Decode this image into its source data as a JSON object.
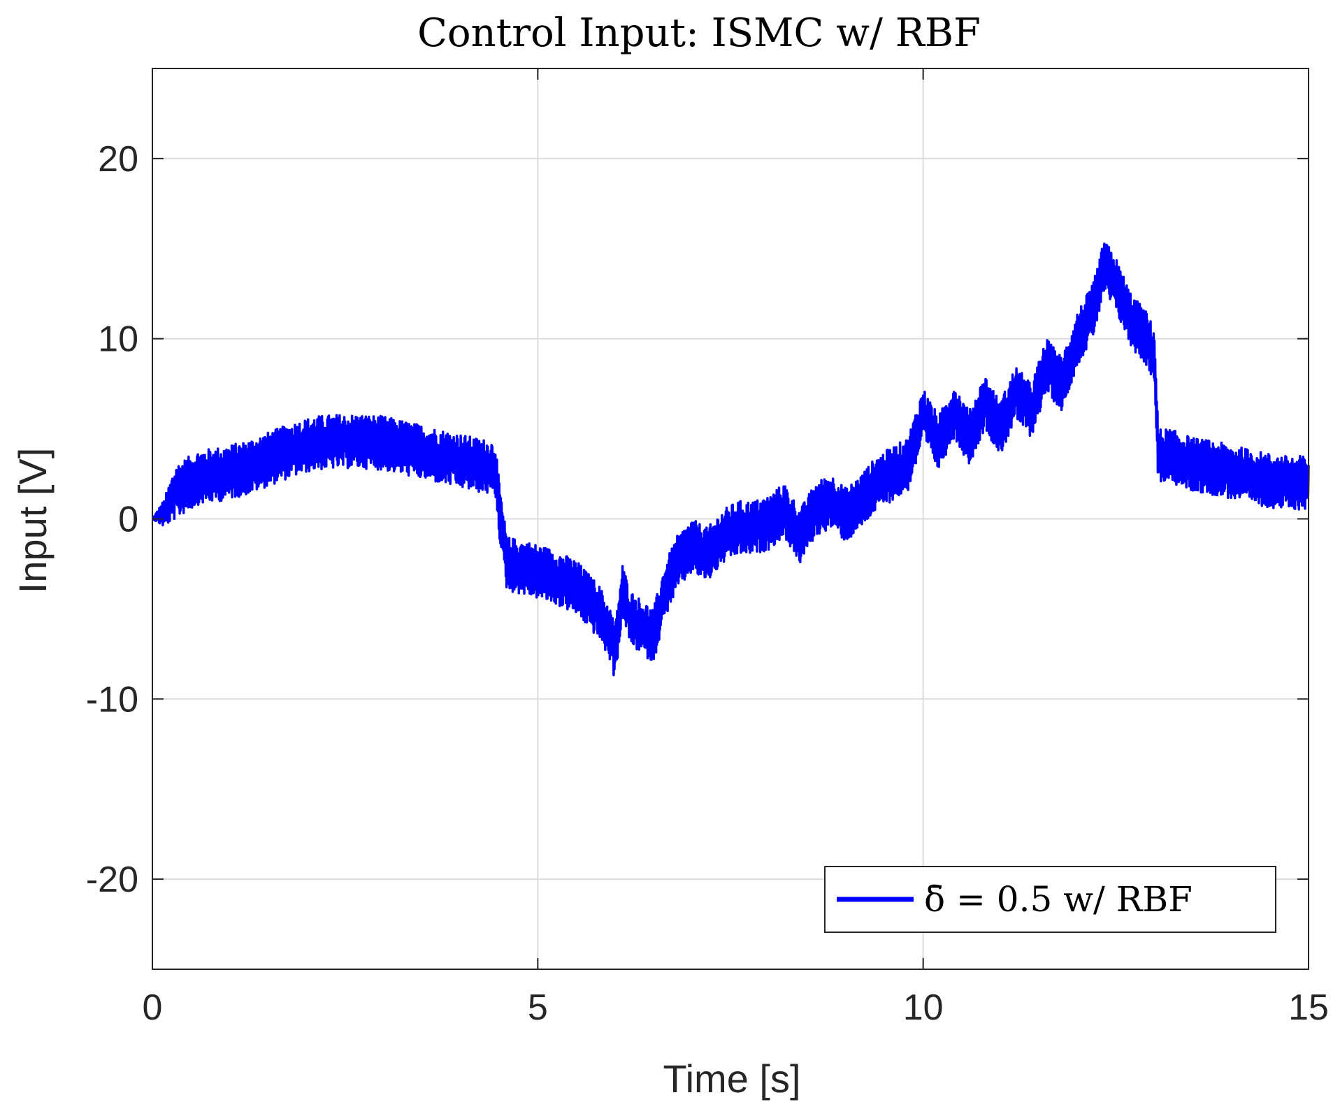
{
  "chart_data": {
    "type": "line",
    "title": "Control Input: ISMC w/ RBF",
    "xlabel": "Time [s]",
    "ylabel": "Input [V]",
    "xlim": [
      0,
      15
    ],
    "ylim": [
      -25,
      25
    ],
    "xticks": [
      0,
      5,
      10,
      15
    ],
    "yticks": [
      -20,
      -10,
      0,
      10,
      20
    ],
    "xtick_labels": [
      "0",
      "5",
      "10",
      "15"
    ],
    "ytick_labels": [
      "-20",
      "-10",
      "0",
      "10",
      "20"
    ],
    "grid": true,
    "legend_position": "bottom-right",
    "series": [
      {
        "name": "δ̄ = 0.5  w/ RBF",
        "color": "#0000ff",
        "chatter_amplitude_approx": 1.5,
        "x": [
          0,
          0.15,
          0.3,
          0.6,
          0.9,
          1.2,
          1.5,
          1.8,
          2.1,
          2.4,
          2.7,
          3.0,
          3.3,
          3.6,
          3.9,
          4.2,
          4.45,
          4.5,
          4.6,
          4.9,
          5.2,
          5.5,
          5.8,
          5.95,
          6.0,
          6.1,
          6.2,
          6.35,
          6.5,
          6.65,
          6.8,
          7.0,
          7.2,
          7.4,
          7.6,
          7.8,
          8.0,
          8.2,
          8.4,
          8.6,
          8.8,
          9.0,
          9.2,
          9.4,
          9.6,
          9.8,
          10.0,
          10.2,
          10.4,
          10.6,
          10.8,
          11.0,
          11.2,
          11.4,
          11.6,
          11.8,
          12.0,
          12.2,
          12.35,
          12.5,
          12.7,
          12.9,
          13.0,
          13.05,
          13.2,
          13.5,
          13.8,
          14.1,
          14.4,
          14.7,
          15.0
        ],
        "values": [
          0,
          0.3,
          1.5,
          2.3,
          2.5,
          2.8,
          3.3,
          3.8,
          4.2,
          4.3,
          4.3,
          4.2,
          3.9,
          3.6,
          3.3,
          3.0,
          2.8,
          0.5,
          -2.5,
          -2.8,
          -3.2,
          -3.8,
          -5.2,
          -6.5,
          -7.5,
          -4.0,
          -5.5,
          -6.0,
          -6.5,
          -4.0,
          -2.5,
          -1.5,
          -2.0,
          -1.0,
          -0.5,
          -0.5,
          -0.2,
          0.5,
          -1.0,
          0.5,
          1.0,
          0.2,
          1.0,
          2.0,
          2.5,
          3.0,
          5.8,
          4.2,
          6.0,
          4.5,
          6.5,
          5.0,
          7.0,
          6.0,
          8.5,
          7.5,
          10.0,
          11.5,
          14.0,
          13.0,
          11.0,
          10.0,
          9.0,
          3.5,
          3.5,
          3.0,
          2.8,
          2.5,
          2.2,
          2.0,
          2.0
        ]
      }
    ]
  }
}
